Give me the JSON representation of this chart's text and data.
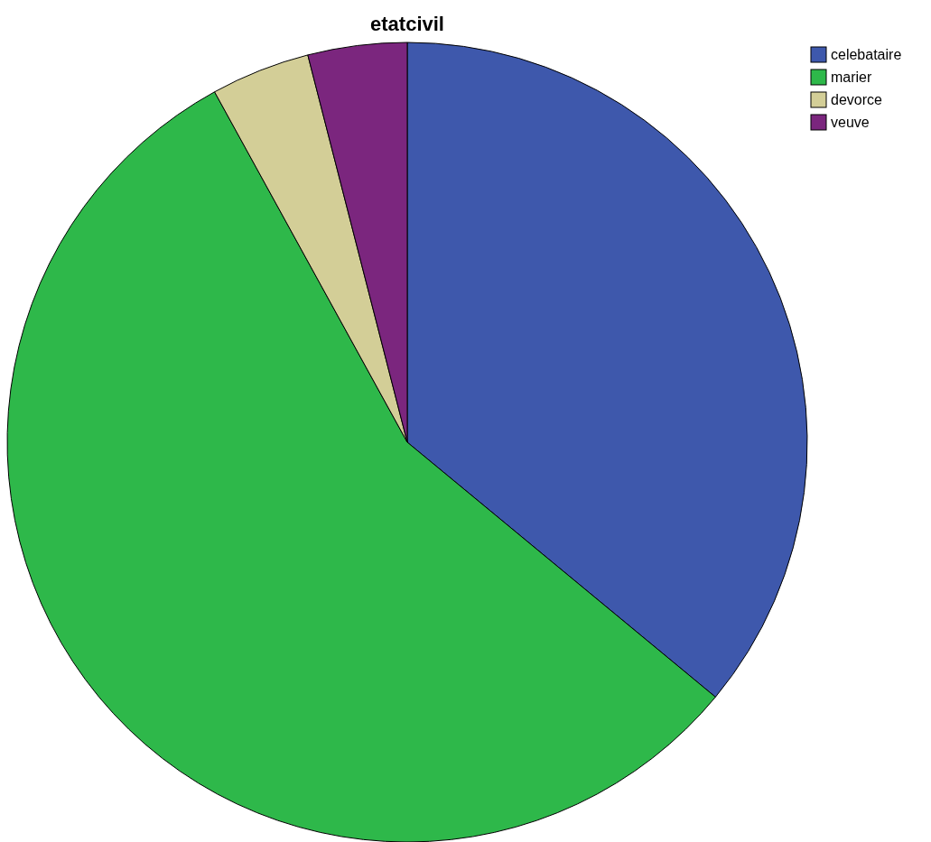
{
  "chart_data": {
    "type": "pie",
    "title": "etatcivil",
    "categories": [
      "celebataire",
      "marier",
      "devorce",
      "veuve"
    ],
    "values": [
      36,
      56,
      4,
      4
    ],
    "colors": [
      "#3e58ac",
      "#2eb84a",
      "#d3ce97",
      "#7b267e"
    ],
    "legend": "top right"
  }
}
